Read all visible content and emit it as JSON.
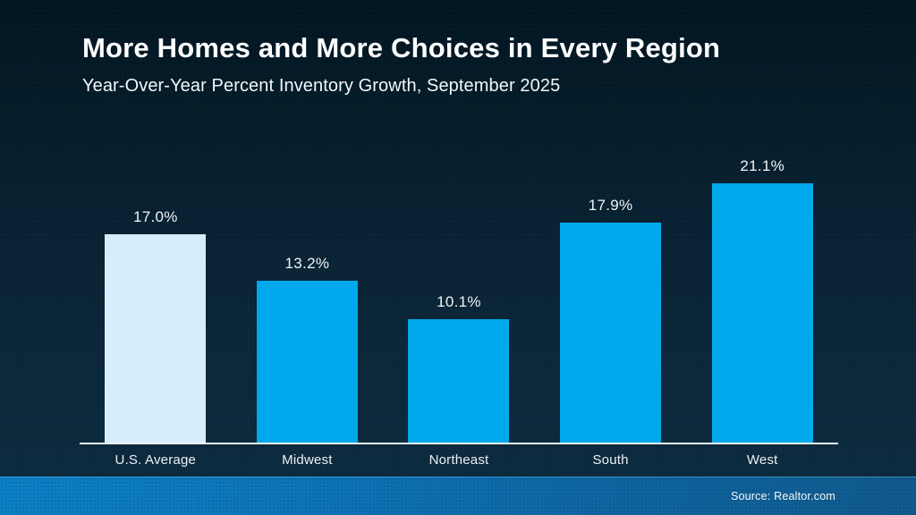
{
  "header": {
    "title": "More Homes and More Choices in Every Region",
    "subtitle": "Year-Over-Year Percent Inventory Growth, September 2025"
  },
  "chart_data": {
    "type": "bar",
    "title": "More Homes and More Choices in Every Region",
    "subtitle": "Year-Over-Year Percent Inventory Growth, September 2025",
    "categories": [
      "U.S. Average",
      "Midwest",
      "Northeast",
      "South",
      "West"
    ],
    "values": [
      17.0,
      13.2,
      10.1,
      17.9,
      21.1
    ],
    "value_labels": [
      "17.0%",
      "13.2%",
      "10.1%",
      "17.9%",
      "21.1%"
    ],
    "xlabel": "",
    "ylabel": "Year-Over-Year Percent Inventory Growth (%)",
    "ylim": [
      0,
      24
    ],
    "grid": false,
    "legend": null,
    "bar_colors": [
      "#d6eefb",
      "#00a9ec",
      "#00a9ec",
      "#00a9ec",
      "#00a9ec"
    ]
  },
  "footer": {
    "source": "Source: Realtor.com"
  },
  "colors": {
    "background_top": "#021521",
    "background_bottom": "#0c2a3e",
    "bar_default": "#00a9ec",
    "bar_highlight": "#d6eefb",
    "axis_line": "#f1f5f7",
    "footer_left": "#0c80c5",
    "footer_right": "#105a8c",
    "text": "#ffffff"
  }
}
